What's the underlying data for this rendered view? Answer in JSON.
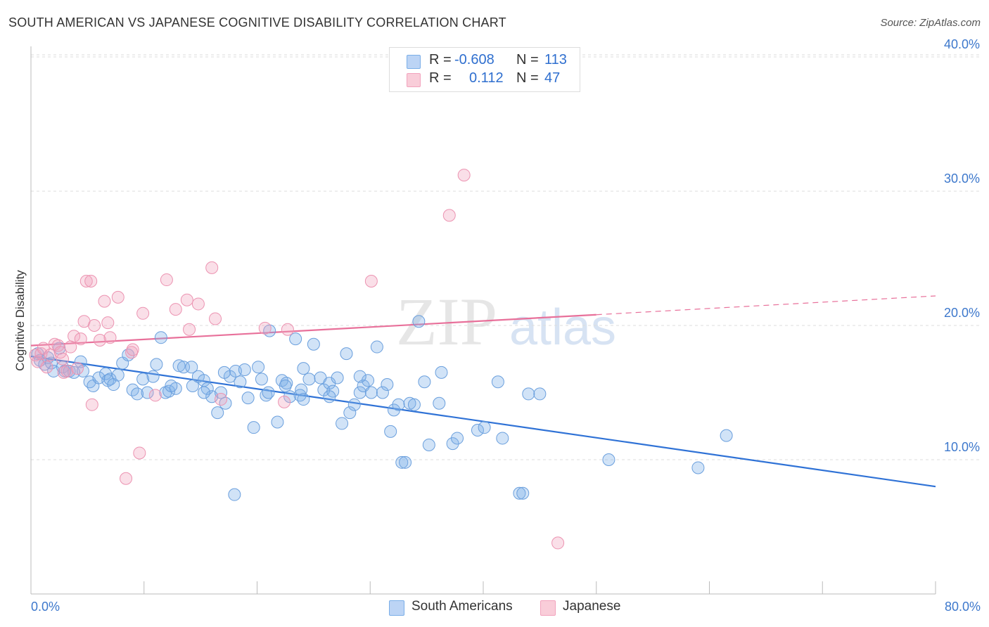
{
  "header": {
    "title": "SOUTH AMERICAN VS JAPANESE COGNITIVE DISABILITY CORRELATION CHART",
    "source": "Source: ZipAtlas.com"
  },
  "legend": {
    "rows": [
      {
        "r_label": "R =",
        "r_value": "-0.608",
        "n_label": "N =",
        "n_value": "113",
        "color": "#7aaee8"
      },
      {
        "r_label": "R =",
        "r_value": "0.112",
        "n_label": "N =",
        "n_value": "47",
        "color": "#f2a3bd"
      }
    ],
    "bottom": [
      {
        "label": "South Americans",
        "color": "#7aaee8"
      },
      {
        "label": "Japanese",
        "color": "#f2a3bd"
      }
    ]
  },
  "watermark": {
    "zip": "ZIP",
    "atlas": "atlas"
  },
  "chart_data": {
    "type": "scatter",
    "title": "SOUTH AMERICAN VS JAPANESE COGNITIVE DISABILITY CORRELATION CHART",
    "xlabel": "",
    "ylabel": "Cognitive Disability",
    "xlim": [
      0,
      80
    ],
    "ylim": [
      0,
      40
    ],
    "x_tick_labels": [
      "0.0%",
      "80.0%"
    ],
    "y_ticks": [
      10,
      20,
      30,
      40
    ],
    "y_tick_labels": [
      "10.0%",
      "20.0%",
      "30.0%",
      "40.0%"
    ],
    "grid": true,
    "legend_position": "top-center",
    "colors": {
      "South Americans": "#2f72d6",
      "Japanese": "#e8709a",
      "axis_text": "#3d78cc"
    },
    "series": [
      {
        "name": "South Americans",
        "trendline": {
          "x": [
            0,
            80
          ],
          "y": [
            17.7,
            8.0
          ]
        },
        "points": [
          [
            0.6,
            17.9
          ],
          [
            0.8,
            17.4
          ],
          [
            1.2,
            17.1
          ],
          [
            1.5,
            17.6
          ],
          [
            1.8,
            17.2
          ],
          [
            2.0,
            16.6
          ],
          [
            2.5,
            18.3
          ],
          [
            2.8,
            16.9
          ],
          [
            3.0,
            16.6
          ],
          [
            3.4,
            16.6
          ],
          [
            3.8,
            16.5
          ],
          [
            4.4,
            17.3
          ],
          [
            4.6,
            16.6
          ],
          [
            5.2,
            15.8
          ],
          [
            5.5,
            15.5
          ],
          [
            6.0,
            16.1
          ],
          [
            6.6,
            16.4
          ],
          [
            6.8,
            15.9
          ],
          [
            7.0,
            16.0
          ],
          [
            7.3,
            15.6
          ],
          [
            7.7,
            16.3
          ],
          [
            8.1,
            17.2
          ],
          [
            8.6,
            17.8
          ],
          [
            9.0,
            15.2
          ],
          [
            9.4,
            14.9
          ],
          [
            9.9,
            16.0
          ],
          [
            10.3,
            15.0
          ],
          [
            10.8,
            16.2
          ],
          [
            11.1,
            17.1
          ],
          [
            11.5,
            19.1
          ],
          [
            11.9,
            15.0
          ],
          [
            12.2,
            15.1
          ],
          [
            12.8,
            15.3
          ],
          [
            13.1,
            17.0
          ],
          [
            13.5,
            16.9
          ],
          [
            14.2,
            16.9
          ],
          [
            14.3,
            15.5
          ],
          [
            14.8,
            16.2
          ],
          [
            15.3,
            15.9
          ],
          [
            15.6,
            15.3
          ],
          [
            16.0,
            14.7
          ],
          [
            16.5,
            13.5
          ],
          [
            16.8,
            15.0
          ],
          [
            17.2,
            14.2
          ],
          [
            17.6,
            16.2
          ],
          [
            18.1,
            16.6
          ],
          [
            18.5,
            15.8
          ],
          [
            18.9,
            16.7
          ],
          [
            19.2,
            14.6
          ],
          [
            19.7,
            12.4
          ],
          [
            20.1,
            16.9
          ],
          [
            20.4,
            16.0
          ],
          [
            20.8,
            14.8
          ],
          [
            21.1,
            19.6
          ],
          [
            21.8,
            12.8
          ],
          [
            22.2,
            15.9
          ],
          [
            22.6,
            15.7
          ],
          [
            22.9,
            14.7
          ],
          [
            23.4,
            19.0
          ],
          [
            23.8,
            14.8
          ],
          [
            24.1,
            14.5
          ],
          [
            24.6,
            16.0
          ],
          [
            25.0,
            18.6
          ],
          [
            25.6,
            16.1
          ],
          [
            25.9,
            15.2
          ],
          [
            26.4,
            15.7
          ],
          [
            26.7,
            15.1
          ],
          [
            27.1,
            16.1
          ],
          [
            27.5,
            12.7
          ],
          [
            27.9,
            17.9
          ],
          [
            28.2,
            13.5
          ],
          [
            28.6,
            14.1
          ],
          [
            29.1,
            15.0
          ],
          [
            29.4,
            15.5
          ],
          [
            29.8,
            15.9
          ],
          [
            30.1,
            15.0
          ],
          [
            30.6,
            18.4
          ],
          [
            31.1,
            15.0
          ],
          [
            31.5,
            15.6
          ],
          [
            31.8,
            12.1
          ],
          [
            32.1,
            13.7
          ],
          [
            32.5,
            14.1
          ],
          [
            32.8,
            9.8
          ],
          [
            33.1,
            9.8
          ],
          [
            33.5,
            14.2
          ],
          [
            33.9,
            14.1
          ],
          [
            34.3,
            20.3
          ],
          [
            34.8,
            15.8
          ],
          [
            35.2,
            11.1
          ],
          [
            36.1,
            14.2
          ],
          [
            36.3,
            16.5
          ],
          [
            37.3,
            11.2
          ],
          [
            37.7,
            11.6
          ],
          [
            39.5,
            12.2
          ],
          [
            40.1,
            12.4
          ],
          [
            41.3,
            15.8
          ],
          [
            41.7,
            11.6
          ],
          [
            43.2,
            7.5
          ],
          [
            43.5,
            7.5
          ],
          [
            44.0,
            14.9
          ],
          [
            45.0,
            14.9
          ],
          [
            51.1,
            10.0
          ],
          [
            59.0,
            9.4
          ],
          [
            61.5,
            11.8
          ],
          [
            18.0,
            7.4
          ],
          [
            23.9,
            15.2
          ],
          [
            26.4,
            14.7
          ],
          [
            29.1,
            16.2
          ],
          [
            12.4,
            15.5
          ],
          [
            15.3,
            15.0
          ],
          [
            17.1,
            16.5
          ],
          [
            22.5,
            15.5
          ],
          [
            24.1,
            16.8
          ],
          [
            21.0,
            15.0
          ]
        ]
      },
      {
        "name": "Japanese",
        "trendline": {
          "x": [
            0,
            50
          ],
          "y": [
            18.5,
            20.8
          ]
        },
        "dashed_extension": {
          "x": [
            50,
            80
          ],
          "y": [
            20.8,
            22.2
          ]
        },
        "points": [
          [
            0.4,
            17.8
          ],
          [
            0.6,
            17.3
          ],
          [
            0.9,
            17.9
          ],
          [
            1.1,
            18.3
          ],
          [
            1.4,
            16.9
          ],
          [
            1.7,
            17.8
          ],
          [
            2.1,
            18.6
          ],
          [
            2.4,
            18.5
          ],
          [
            2.6,
            18.0
          ],
          [
            2.9,
            16.5
          ],
          [
            3.2,
            16.6
          ],
          [
            3.5,
            18.4
          ],
          [
            3.8,
            19.2
          ],
          [
            4.1,
            16.8
          ],
          [
            4.4,
            19.0
          ],
          [
            4.7,
            20.3
          ],
          [
            4.9,
            23.3
          ],
          [
            5.3,
            23.3
          ],
          [
            5.4,
            14.1
          ],
          [
            5.6,
            20.0
          ],
          [
            6.1,
            18.9
          ],
          [
            6.5,
            21.8
          ],
          [
            6.8,
            20.2
          ],
          [
            7.0,
            19.1
          ],
          [
            7.7,
            22.1
          ],
          [
            8.4,
            8.6
          ],
          [
            8.9,
            18.0
          ],
          [
            9.0,
            18.2
          ],
          [
            9.6,
            10.5
          ],
          [
            9.9,
            20.9
          ],
          [
            11.0,
            14.8
          ],
          [
            12.0,
            23.4
          ],
          [
            12.8,
            21.2
          ],
          [
            13.8,
            21.9
          ],
          [
            14.0,
            19.7
          ],
          [
            14.8,
            21.6
          ],
          [
            16.0,
            24.3
          ],
          [
            16.3,
            20.5
          ],
          [
            16.8,
            14.5
          ],
          [
            20.7,
            19.8
          ],
          [
            22.4,
            14.3
          ],
          [
            22.7,
            19.7
          ],
          [
            30.1,
            23.3
          ],
          [
            37.0,
            28.2
          ],
          [
            38.3,
            31.2
          ],
          [
            46.6,
            3.8
          ],
          [
            2.8,
            17.5
          ]
        ]
      }
    ]
  }
}
